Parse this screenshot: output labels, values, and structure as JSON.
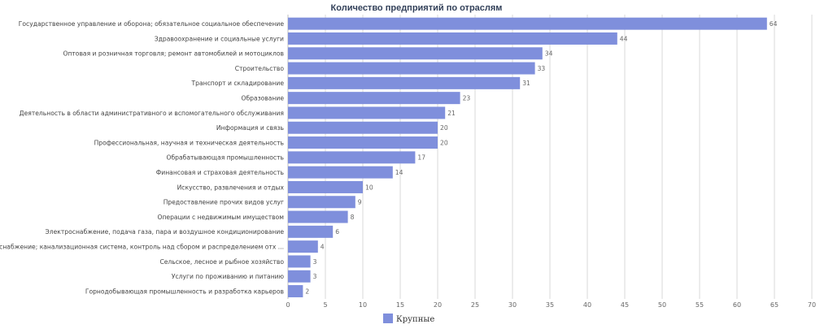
{
  "chart_data": {
    "type": "bar",
    "orientation": "horizontal",
    "title": "Количество предприятий по отраслям",
    "categories": [
      "Государственное управление и оборона; обязательное социальное обеспечение",
      "Здравоохранение и социальные услуги",
      "Оптовая и розничная торговля; ремонт автомобилей и мотоциклов",
      "Строительство",
      "Транспорт и складирование",
      "Образование",
      "Деятельность в области административного и вспомогательного обслуживания",
      "Информация и связь",
      "Профессиональная, научная и техническая деятельность",
      "Обрабатывающая промышленность",
      "Финансовая и страховая деятельность",
      "Искусство, развлечения и отдых",
      "Предоставление прочих видов услуг",
      "Операции с недвижимым имуществом",
      "Электроснабжение, подача газа, пара и воздушное кондиционирование",
      "Водоснабжение; канализационная система, контроль над сбором и распределением отх ...",
      "Сельское, лесное и рыбное хозяйство",
      "Услуги по проживанию и питанию",
      "Горнодобывающая промышленность и разработка карьеров"
    ],
    "series": [
      {
        "name": "Крупные",
        "color": "#7f8fdc",
        "values": [
          64,
          44,
          34,
          33,
          31,
          23,
          21,
          20,
          20,
          17,
          14,
          10,
          9,
          8,
          6,
          4,
          3,
          3,
          2
        ]
      }
    ],
    "xlim": [
      0,
      70
    ],
    "xticks": [
      0,
      5,
      10,
      15,
      20,
      25,
      30,
      35,
      40,
      45,
      50,
      55,
      60,
      65,
      70
    ],
    "grid": true,
    "legend_position": "bottom-center"
  }
}
